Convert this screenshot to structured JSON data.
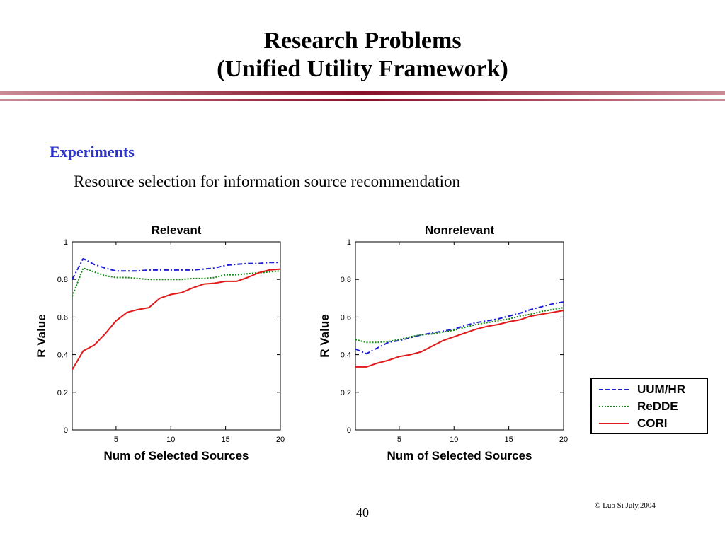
{
  "slide": {
    "title_line1": "Research Problems",
    "title_line2": "(Unified Utility Framework)",
    "section": "Experiments",
    "subtitle": "Resource selection for information source recommendation",
    "copyright": "© Luo Si July,2004",
    "page_number": "40"
  },
  "colors": {
    "rule": "#9b1b30",
    "section": "#2b35c8",
    "UUM/HR": "#1f1fd6",
    "ReDDE": "#118a11",
    "CORI": "#e01a1a"
  },
  "legend": [
    "UUM/HR",
    "ReDDE",
    "CORI"
  ],
  "chart_data": [
    {
      "type": "line",
      "title": "Relevant",
      "xlabel": "Num of Selected Sources",
      "ylabel": "R Value",
      "xlim": [
        1,
        20
      ],
      "ylim": [
        0,
        1
      ],
      "xticks": [
        5,
        10,
        15,
        20
      ],
      "yticks": [
        0,
        0.2,
        0.4,
        0.6,
        0.8,
        1
      ],
      "ytick_labels": [
        "0",
        "0.2",
        "0.4",
        "0.6",
        "0.8",
        "1"
      ],
      "x": [
        1,
        2,
        3,
        4,
        5,
        6,
        7,
        8,
        9,
        10,
        11,
        12,
        13,
        14,
        15,
        16,
        17,
        18,
        19,
        20
      ],
      "series": [
        {
          "name": "UUM/HR",
          "values": [
            0.8,
            0.91,
            0.88,
            0.86,
            0.845,
            0.845,
            0.845,
            0.85,
            0.85,
            0.85,
            0.85,
            0.85,
            0.855,
            0.86,
            0.875,
            0.88,
            0.885,
            0.885,
            0.89,
            0.89
          ]
        },
        {
          "name": "ReDDE",
          "values": [
            0.71,
            0.86,
            0.84,
            0.82,
            0.81,
            0.81,
            0.805,
            0.8,
            0.8,
            0.8,
            0.8,
            0.805,
            0.805,
            0.81,
            0.825,
            0.825,
            0.83,
            0.835,
            0.84,
            0.845
          ]
        },
        {
          "name": "CORI",
          "values": [
            0.32,
            0.42,
            0.45,
            0.51,
            0.58,
            0.625,
            0.64,
            0.65,
            0.7,
            0.72,
            0.73,
            0.755,
            0.775,
            0.78,
            0.79,
            0.79,
            0.81,
            0.835,
            0.85,
            0.855
          ]
        }
      ]
    },
    {
      "type": "line",
      "title": "Nonrelevant",
      "xlabel": "Num of Selected Sources",
      "ylabel": "R Value",
      "xlim": [
        1,
        20
      ],
      "ylim": [
        0,
        1
      ],
      "xticks": [
        5,
        10,
        15,
        20
      ],
      "yticks": [
        0,
        0.2,
        0.4,
        0.6,
        0.8,
        1
      ],
      "ytick_labels": [
        "0",
        "0.2",
        "0.4",
        "0.6",
        "0.8",
        "1"
      ],
      "x": [
        1,
        2,
        3,
        4,
        5,
        6,
        7,
        8,
        9,
        10,
        11,
        12,
        13,
        14,
        15,
        16,
        17,
        18,
        19,
        20
      ],
      "series": [
        {
          "name": "UUM/HR",
          "values": [
            0.43,
            0.405,
            0.435,
            0.465,
            0.475,
            0.49,
            0.505,
            0.515,
            0.525,
            0.535,
            0.555,
            0.57,
            0.58,
            0.59,
            0.605,
            0.62,
            0.64,
            0.655,
            0.67,
            0.68
          ]
        },
        {
          "name": "ReDDE",
          "values": [
            0.48,
            0.465,
            0.465,
            0.47,
            0.48,
            0.495,
            0.505,
            0.51,
            0.52,
            0.53,
            0.545,
            0.56,
            0.57,
            0.58,
            0.59,
            0.605,
            0.615,
            0.63,
            0.64,
            0.65
          ]
        },
        {
          "name": "CORI",
          "values": [
            0.335,
            0.335,
            0.355,
            0.37,
            0.39,
            0.4,
            0.415,
            0.445,
            0.475,
            0.495,
            0.515,
            0.535,
            0.55,
            0.56,
            0.575,
            0.585,
            0.605,
            0.615,
            0.625,
            0.635
          ]
        }
      ]
    }
  ]
}
